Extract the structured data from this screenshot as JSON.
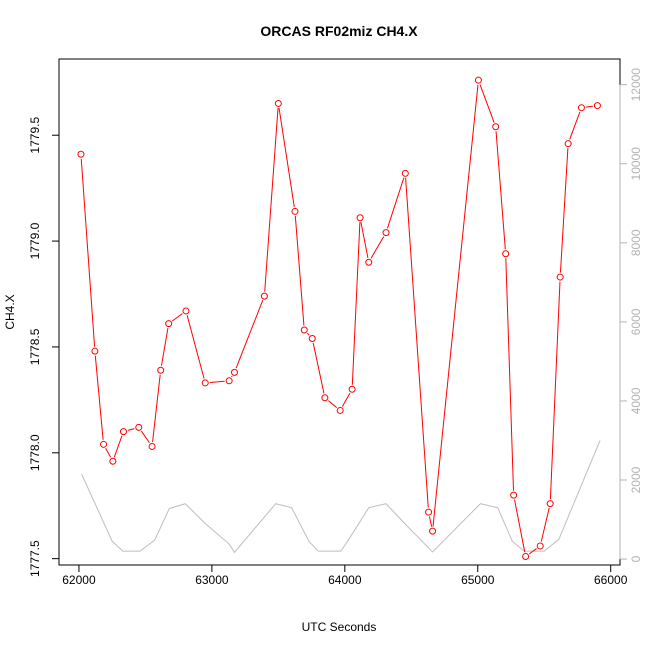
{
  "chart_data": {
    "type": "line",
    "title": "ORCAS RF02miz CH4.X",
    "xlabel": "UTC Seconds",
    "ylabel": "CH4.X",
    "xlim": [
      61850,
      66070
    ],
    "ylim": [
      1777.47,
      1779.86
    ],
    "y2lim": [
      -150,
      12650
    ],
    "x_ticks": [
      62000,
      63000,
      64000,
      65000,
      66000
    ],
    "y_ticks": [
      1777.5,
      1778.0,
      1778.5,
      1779.0,
      1779.5
    ],
    "y2_ticks": [
      0,
      2000,
      4000,
      6000,
      8000,
      10000,
      12000
    ],
    "tick_labels": {
      "x": [
        "62000",
        "63000",
        "64000",
        "65000",
        "66000"
      ],
      "y": [
        "1777.5",
        "1778.0",
        "1778.5",
        "1779.0",
        "1779.5"
      ],
      "y2": [
        "0",
        "2000",
        "4000",
        "6000",
        "8000",
        "10000",
        "12000"
      ]
    },
    "grid": false,
    "colors": {
      "primary": "#ff0000",
      "secondary": "#bebebe",
      "right_axis": "#b3b3b3"
    },
    "series": [
      {
        "axis": "left",
        "style": "line+points",
        "color": "#ff0000",
        "x": [
          62015,
          62120,
          62185,
          62255,
          62335,
          62450,
          62550,
          62615,
          62675,
          62805,
          62950,
          63130,
          63170,
          63395,
          63500,
          63625,
          63695,
          63755,
          63850,
          63965,
          64055,
          64115,
          64180,
          64310,
          64455,
          64630,
          64660,
          65005,
          65135,
          65210,
          65270,
          65360,
          65470,
          65545,
          65620,
          65680,
          65780,
          65900
        ],
        "y": [
          1779.41,
          1778.48,
          1778.04,
          1777.96,
          1778.1,
          1778.12,
          1778.03,
          1778.39,
          1778.61,
          1778.67,
          1778.33,
          1778.34,
          1778.38,
          1778.74,
          1779.65,
          1779.14,
          1778.58,
          1778.54,
          1778.26,
          1778.2,
          1778.3,
          1779.11,
          1778.9,
          1779.04,
          1779.32,
          1777.72,
          1777.63,
          1779.76,
          1779.54,
          1778.94,
          1777.8,
          1777.51,
          1777.56,
          1777.76,
          1778.83,
          1779.46,
          1779.63,
          1779.64
        ]
      },
      {
        "axis": "right",
        "style": "line",
        "color": "#bebebe",
        "x": [
          62020,
          62250,
          62330,
          62460,
          62570,
          62680,
          62800,
          62950,
          63130,
          63170,
          63480,
          63600,
          63730,
          63800,
          63970,
          64040,
          64180,
          64310,
          64450,
          64660,
          65020,
          65150,
          65260,
          65350,
          65500,
          65610,
          65920
        ],
        "y": [
          2150,
          450,
          200,
          200,
          480,
          1280,
          1400,
          900,
          380,
          170,
          1400,
          1300,
          450,
          200,
          200,
          550,
          1300,
          1400,
          900,
          180,
          1400,
          1300,
          450,
          200,
          200,
          500,
          3000
        ]
      }
    ]
  }
}
